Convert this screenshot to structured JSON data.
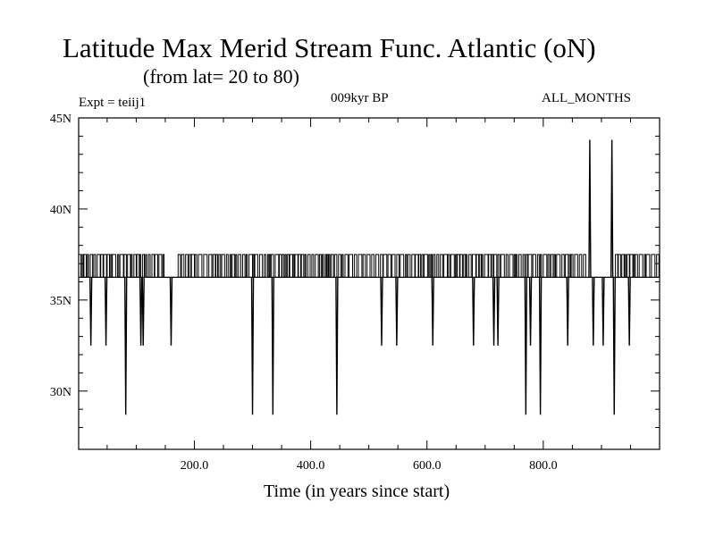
{
  "header": {
    "title": "Latitude Max Merid Stream Func. Atlantic (oN)",
    "subtitle": "(from lat= 20 to 80)",
    "expt": "Expt = teiij1",
    "period": "009kyr BP",
    "months": "ALL_MONTHS"
  },
  "chart_data": {
    "type": "line",
    "title": "Latitude Max Merid Stream Func. Atlantic (oN)",
    "subtitle": "(from lat= 20 to 80)",
    "xlabel": "Time (in years since start)",
    "ylabel": "",
    "xlim": [
      1,
      1000
    ],
    "ylim": [
      26.8,
      45
    ],
    "x_ticks": [
      200,
      400,
      600,
      800
    ],
    "x_tick_labels": [
      "200.0",
      "400.0",
      "600.0",
      "800.0"
    ],
    "y_ticks": [
      30,
      35,
      40,
      45
    ],
    "y_tick_labels": [
      "30N",
      "35N",
      "40N",
      "45N"
    ],
    "baseline": 36.25,
    "upper_band": 37.5,
    "upper_band_gaps": [
      [
        150,
        168
      ],
      [
        880,
        920
      ]
    ],
    "spikes": [
      {
        "x": 22,
        "y": 32.5
      },
      {
        "x": 48,
        "y": 32.5
      },
      {
        "x": 82,
        "y": 28.7
      },
      {
        "x": 108,
        "y": 32.5
      },
      {
        "x": 112,
        "y": 32.5
      },
      {
        "x": 160,
        "y": 32.5
      },
      {
        "x": 300,
        "y": 28.7
      },
      {
        "x": 335,
        "y": 28.7
      },
      {
        "x": 445,
        "y": 28.7
      },
      {
        "x": 522,
        "y": 32.5
      },
      {
        "x": 548,
        "y": 32.5
      },
      {
        "x": 610,
        "y": 32.5
      },
      {
        "x": 680,
        "y": 32.5
      },
      {
        "x": 715,
        "y": 32.5
      },
      {
        "x": 722,
        "y": 32.5
      },
      {
        "x": 770,
        "y": 28.7
      },
      {
        "x": 778,
        "y": 32.5
      },
      {
        "x": 795,
        "y": 28.7
      },
      {
        "x": 842,
        "y": 32.5
      },
      {
        "x": 880,
        "y": 43.8
      },
      {
        "x": 886,
        "y": 32.5
      },
      {
        "x": 903,
        "y": 32.5
      },
      {
        "x": 918,
        "y": 43.8
      },
      {
        "x": 922,
        "y": 28.7
      },
      {
        "x": 948,
        "y": 32.5
      }
    ]
  }
}
